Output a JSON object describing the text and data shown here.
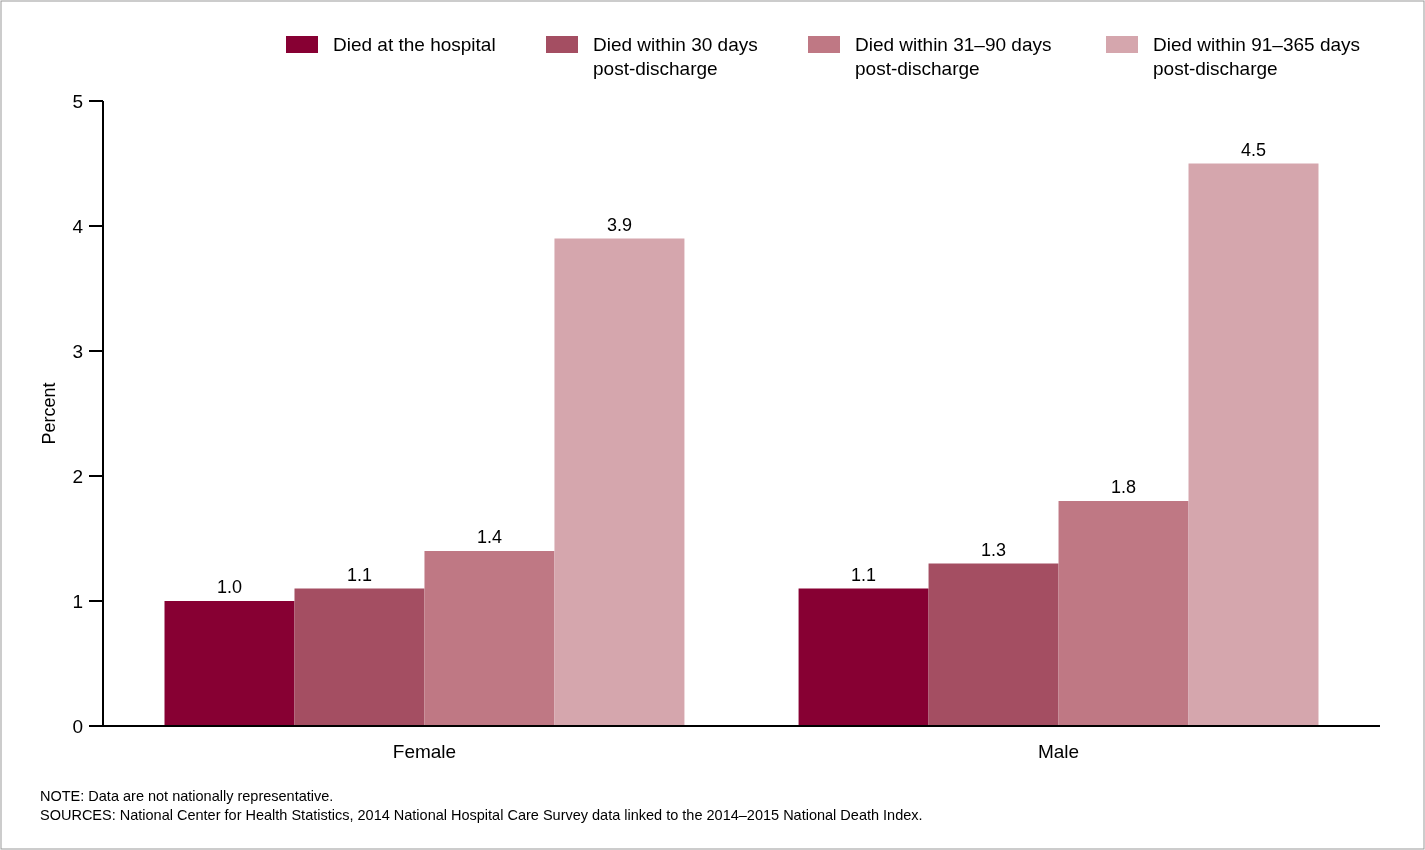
{
  "chart_data": {
    "type": "bar",
    "ylabel": "Percent",
    "categories": [
      "Female",
      "Male"
    ],
    "series": [
      {
        "name": "Died at the hospital",
        "color": "#870033",
        "values": [
          1.0,
          1.1
        ],
        "value_labels": [
          "1.0",
          "1.1"
        ]
      },
      {
        "name": "Died within 30 days post-discharge",
        "color": "#a44e62",
        "values": [
          1.1,
          1.3
        ],
        "value_labels": [
          "1.1",
          "1.3"
        ]
      },
      {
        "name": "Died within 31–90 days post-discharge",
        "color": "#bf7884",
        "values": [
          1.4,
          1.8
        ],
        "value_labels": [
          "1.4",
          "1.8"
        ]
      },
      {
        "name": "Died within 91–365 days post-discharge",
        "color": "#d5a6ad",
        "values": [
          3.9,
          4.5
        ],
        "value_labels": [
          "3.9",
          "4.5"
        ]
      }
    ],
    "ylim": [
      0,
      5
    ],
    "yticks": [
      0,
      1,
      2,
      3,
      4,
      5
    ],
    "grid": false,
    "legend": "top right",
    "annotations": [
      "NOTE: Data are not nationally representative.",
      "SOURCES: National Center for Health Statistics, 2014 National Hospital Care Survey data linked to the 2014–2015 National Death Index."
    ]
  }
}
